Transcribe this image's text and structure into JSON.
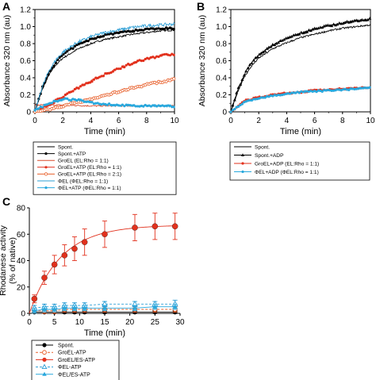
{
  "chart_data": [
    {
      "panel_label": "A",
      "type": "line",
      "xlabel": "Time (min)",
      "ylabel": "Absorbance 320 nm (au)",
      "xlim": [
        0,
        10
      ],
      "ylim": [
        0,
        1.2
      ],
      "xticks": [
        "0",
        "2",
        "4",
        "6",
        "8",
        "10"
      ],
      "yticks": [
        "0",
        "0.2",
        "0.4",
        "0.6",
        "0.8",
        "1.0",
        "1.2"
      ],
      "grid": false,
      "series": [
        {
          "name": "Spont.",
          "color": "#000000",
          "marker": "none",
          "noise": 0.01,
          "x": [
            0,
            0.5,
            1,
            1.5,
            2,
            3,
            4,
            5,
            6,
            7,
            8,
            9,
            10
          ],
          "y": [
            0,
            0.25,
            0.43,
            0.55,
            0.63,
            0.73,
            0.8,
            0.85,
            0.88,
            0.91,
            0.93,
            0.95,
            0.96
          ]
        },
        {
          "name": "Spont.+ATP",
          "color": "#000000",
          "marker": "dot",
          "noise": 0.01,
          "x": [
            0,
            0.5,
            1,
            1.5,
            2,
            3,
            4,
            5,
            6,
            7,
            8,
            9,
            10
          ],
          "y": [
            0,
            0.27,
            0.46,
            0.58,
            0.67,
            0.78,
            0.85,
            0.9,
            0.93,
            0.95,
            0.97,
            0.98,
            0.98
          ]
        },
        {
          "name": "GroEL (EL:Rho = 1:1)",
          "color": "#d94a2a",
          "marker": "none",
          "noise": 0.008,
          "x": [
            0,
            2,
            4,
            6,
            8,
            10
          ],
          "y": [
            0.08,
            0.08,
            0.07,
            0.07,
            0.07,
            0.07
          ]
        },
        {
          "name": "GroEL+ATP (EL:Rho = 1:1)",
          "color": "#e2311d",
          "marker": "dot",
          "noise": 0.012,
          "x": [
            0,
            1,
            2,
            3,
            4,
            5,
            6,
            7,
            8,
            9,
            10
          ],
          "y": [
            0,
            0.08,
            0.18,
            0.27,
            0.36,
            0.44,
            0.51,
            0.57,
            0.62,
            0.66,
            0.68
          ]
        },
        {
          "name": "GroEL+ATP (EL:Rho = 2:1)",
          "color": "#e8602c",
          "marker": "ring",
          "noise": 0.01,
          "x": [
            0,
            1,
            2,
            3,
            4,
            5,
            6,
            7,
            8,
            9,
            10
          ],
          "y": [
            0,
            0.03,
            0.07,
            0.11,
            0.15,
            0.19,
            0.24,
            0.28,
            0.32,
            0.35,
            0.38
          ]
        },
        {
          "name": "ΦEL (ΦEL:Rho = 1:1)",
          "color": "#2e9fd6",
          "marker": "none",
          "noise": 0.018,
          "x": [
            0,
            0.5,
            1,
            1.5,
            2,
            3,
            4,
            5,
            6,
            7,
            8,
            9,
            10
          ],
          "y": [
            0,
            0.28,
            0.48,
            0.61,
            0.7,
            0.81,
            0.88,
            0.93,
            0.96,
            0.99,
            1.01,
            1.02,
            1.03
          ]
        },
        {
          "name": "ΦEL+ATP (ΦEL:Rho = 1:1)",
          "color": "#29a8dd",
          "marker": "dot",
          "noise": 0.01,
          "x": [
            0,
            1,
            2,
            3,
            4,
            5,
            6,
            7,
            8,
            9,
            10
          ],
          "y": [
            0.02,
            0.1,
            0.15,
            0.14,
            0.11,
            0.09,
            0.08,
            0.07,
            0.07,
            0.07,
            0.06
          ]
        }
      ]
    },
    {
      "panel_label": "B",
      "type": "line",
      "xlabel": "Time (min)",
      "ylabel": "Absorbance 320 nm (au)",
      "xlim": [
        0,
        10
      ],
      "ylim": [
        0,
        1.2
      ],
      "xticks": [
        "0",
        "2",
        "4",
        "6",
        "8",
        "10"
      ],
      "yticks": [
        "0",
        "0.2",
        "0.4",
        "0.6",
        "0.8",
        "1.0",
        "1.2"
      ],
      "grid": false,
      "series": [
        {
          "name": "Spont.",
          "color": "#000000",
          "marker": "none",
          "noise": 0.01,
          "x": [
            0,
            0.5,
            1,
            1.5,
            2,
            3,
            4,
            5,
            6,
            7,
            8,
            9,
            10
          ],
          "y": [
            0,
            0.24,
            0.42,
            0.54,
            0.63,
            0.74,
            0.81,
            0.87,
            0.91,
            0.95,
            0.98,
            1.0,
            1.02
          ]
        },
        {
          "name": "Spont.+ADP",
          "color": "#000000",
          "marker": "tri",
          "noise": 0.01,
          "x": [
            0,
            0.5,
            1,
            1.5,
            2,
            3,
            4,
            5,
            6,
            7,
            8,
            9,
            10
          ],
          "y": [
            0,
            0.26,
            0.45,
            0.58,
            0.67,
            0.78,
            0.86,
            0.92,
            0.97,
            1.01,
            1.04,
            1.07,
            1.09
          ]
        },
        {
          "name": "GroEL+ADP (EL:Rho = 1:1)",
          "color": "#e2311d",
          "marker": "dot",
          "noise": 0.008,
          "x": [
            0,
            1,
            2,
            3,
            4,
            5,
            6,
            7,
            8,
            9,
            10
          ],
          "y": [
            0,
            0.13,
            0.17,
            0.2,
            0.22,
            0.23,
            0.25,
            0.26,
            0.27,
            0.28,
            0.29
          ]
        },
        {
          "name": "ΦEL+ADP (ΦEL:Rho = 1:1)",
          "color": "#29a8dd",
          "marker": "dot",
          "noise": 0.008,
          "x": [
            0,
            1,
            2,
            3,
            4,
            5,
            6,
            7,
            8,
            9,
            10
          ],
          "y": [
            0,
            0.12,
            0.16,
            0.19,
            0.21,
            0.23,
            0.24,
            0.25,
            0.26,
            0.27,
            0.28
          ]
        }
      ]
    },
    {
      "panel_label": "C",
      "type": "scatter",
      "xlabel": "Time (min)",
      "ylabel": "Rhodanese activity\n(% of native)",
      "xlim": [
        0,
        30
      ],
      "ylim": [
        0,
        80
      ],
      "xticks": [
        "0",
        "5",
        "10",
        "15",
        "20",
        "25",
        "30"
      ],
      "yticks": [
        "0",
        "20",
        "40",
        "60",
        "80"
      ],
      "grid": false,
      "x": [
        1,
        3,
        5,
        7,
        9,
        11,
        15,
        21,
        25,
        29
      ],
      "series": [
        {
          "name": "Spont.",
          "color": "#000000",
          "marker": "dot",
          "dashed": false,
          "y": [
            1,
            1,
            1,
            1,
            1,
            1,
            1,
            1,
            1,
            1
          ],
          "err": [
            1,
            1,
            1,
            1,
            1,
            1,
            1,
            1,
            1,
            1
          ]
        },
        {
          "name": "GroEL-ATP",
          "color": "#e8602c",
          "marker": "ring",
          "dashed": true,
          "y": [
            2,
            2,
            2,
            3,
            3,
            3,
            3,
            3,
            3,
            3
          ],
          "err": [
            2,
            2,
            2,
            2,
            2,
            2,
            2,
            2,
            2,
            2
          ]
        },
        {
          "name": "GroEL/ES-ATP",
          "color": "#e2311d",
          "marker": "dot",
          "dashed": false,
          "y": [
            11,
            27,
            37,
            44,
            49,
            54,
            60,
            65,
            66,
            66
          ],
          "err": [
            3,
            5,
            7,
            8,
            9,
            10,
            10,
            10,
            10,
            10
          ]
        },
        {
          "name": "ΦEL-ATP",
          "color": "#2e9fd6",
          "marker": "tri-open",
          "dashed": true,
          "y": [
            4,
            5,
            5,
            6,
            6,
            6,
            7,
            7,
            7,
            7
          ],
          "err": [
            2,
            2,
            2,
            2,
            2,
            2,
            2,
            2,
            2,
            3
          ]
        },
        {
          "name": "ΦEL/ES-ATP",
          "color": "#29a8dd",
          "marker": "tri",
          "dashed": false,
          "y": [
            2,
            3,
            3,
            4,
            4,
            4,
            4,
            4,
            5,
            5
          ],
          "err": [
            2,
            2,
            2,
            2,
            2,
            2,
            2,
            2,
            2,
            2
          ]
        }
      ]
    }
  ]
}
